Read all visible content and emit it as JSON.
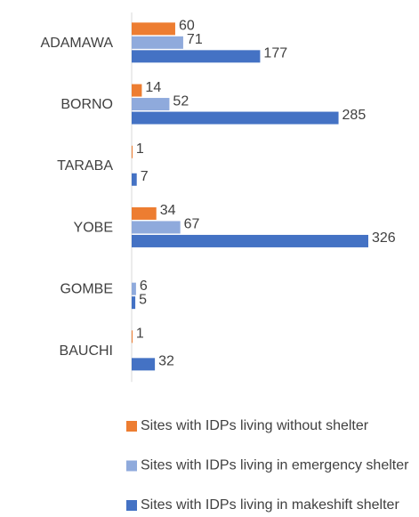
{
  "chart_data": {
    "type": "bar",
    "orientation": "horizontal",
    "categories": [
      "ADAMAWA",
      "BORNO",
      "TARABA",
      "YOBE",
      "GOMBE",
      "BAUCHI"
    ],
    "series": [
      {
        "name": "Sites with IDPs living without shelter",
        "color": "#ed7d31",
        "values": [
          60,
          14,
          1,
          34,
          null,
          1
        ]
      },
      {
        "name": "Sites with IDPs living in emergency shelter",
        "color": "#8faadc",
        "values": [
          71,
          52,
          null,
          67,
          6,
          null
        ]
      },
      {
        "name": "Sites with IDPs living in makeshift shelter",
        "color": "#4472c4",
        "values": [
          177,
          285,
          7,
          326,
          5,
          32
        ]
      }
    ],
    "legend": "bottom"
  }
}
